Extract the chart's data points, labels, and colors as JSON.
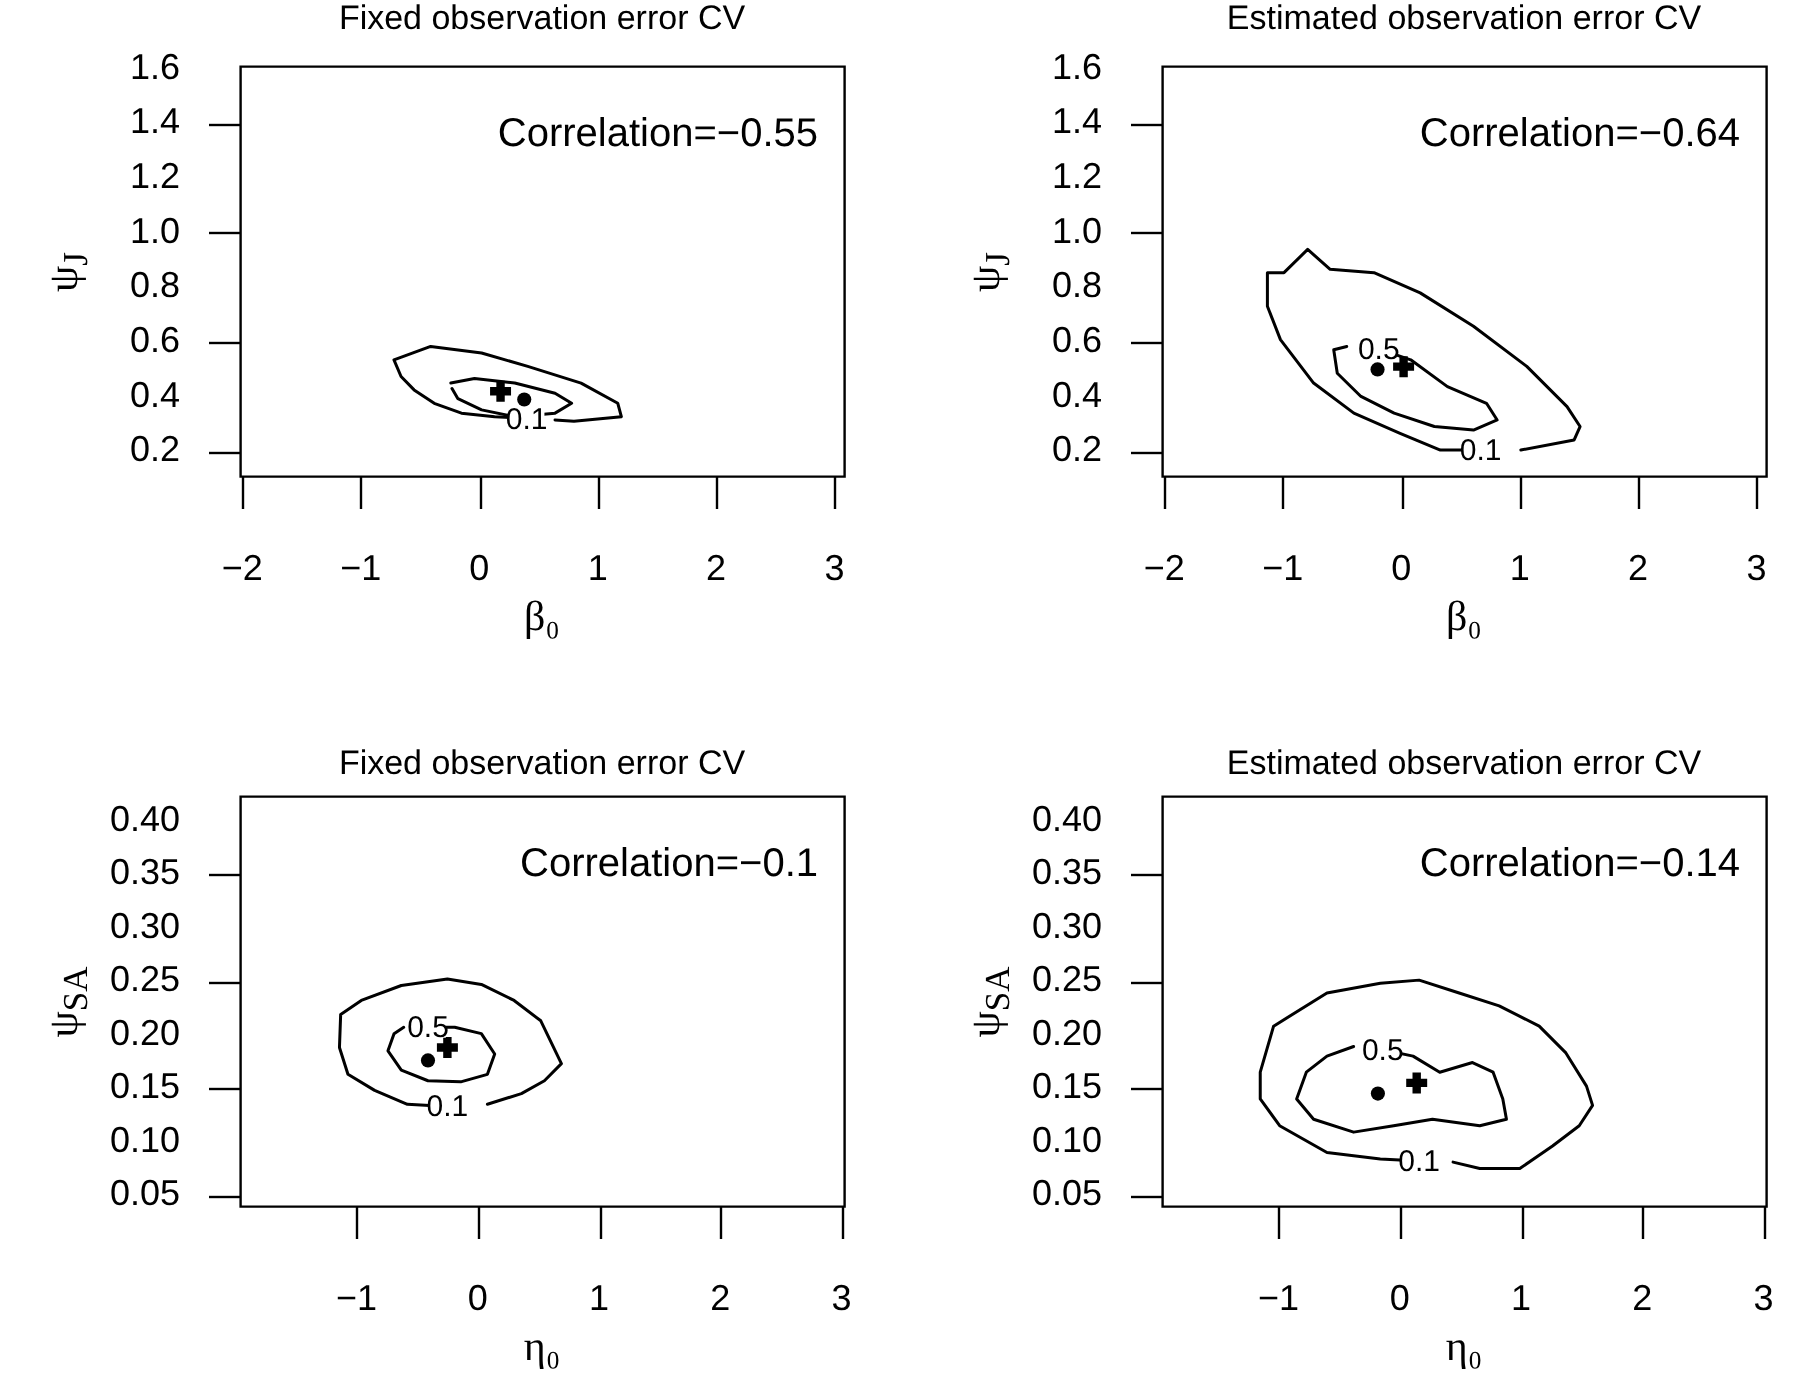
{
  "chart_data": [
    {
      "type": "line",
      "title": "Fixed observation error CV",
      "xlabel": "β₀",
      "ylabel": "ψ$_{J}$",
      "xlim": [
        -2.02,
        3.08
      ],
      "ylim": [
        0.11,
        1.61
      ],
      "xticks": [
        -2,
        -1,
        0,
        1,
        2,
        3
      ],
      "yticks": [
        0.2,
        0.4,
        0.6,
        0.8,
        {
          "value": 1,
          "label": "1.0"
        },
        1.2,
        1.4,
        1.6
      ],
      "series": [
        {
          "type": "line",
          "color": "#000000",
          "x": [
            0.4,
            0.13,
            -0.15,
            -0.38,
            -0.55,
            -0.66,
            -0.72,
            -0.41,
            0.02,
            0.41,
            0.86,
            1.17,
            1.2,
            0.8,
            0.64
          ],
          "values": [
            0.32,
            0.327,
            0.34,
            0.376,
            0.425,
            0.474,
            0.535,
            0.584,
            0.56,
            0.511,
            0.45,
            0.376,
            0.327,
            0.31,
            0.315
          ]
        },
        {
          "type": "line",
          "color": "#000000",
          "x": [
            -0.24,
            -0.04,
            0.3,
            0.64,
            0.78,
            0.64,
            0.3,
            0.02,
            -0.18,
            -0.23
          ],
          "values": [
            0.45,
            0.467,
            0.45,
            0.413,
            0.376,
            0.34,
            0.327,
            0.352,
            0.393,
            0.43
          ]
        },
        {
          "type": "scatter",
          "marker": "circle",
          "color": "#000000",
          "x": [
            0.38
          ],
          "values": [
            0.39
          ]
        },
        {
          "type": "scatter",
          "marker": "cross",
          "color": "#000000",
          "x": [
            0.18
          ],
          "values": [
            0.42
          ]
        }
      ],
      "annotations": [
        "Correlation=−0.55",
        {
          "text": "0.1",
          "x": 0.4,
          "y": 0.32
        }
      ]
    },
    {
      "type": "line",
      "title": "Estimated observation error CV",
      "xlabel": "β₀",
      "ylabel": "ψ$_{J}$",
      "xlim": [
        -2.02,
        3.08
      ],
      "ylim": [
        0.11,
        1.61
      ],
      "xticks": [
        -2,
        -1,
        0,
        1,
        2,
        3
      ],
      "yticks": [
        0.2,
        0.4,
        0.6,
        0.8,
        {
          "value": 1,
          "label": "1.0"
        },
        1.2,
        1.4,
        1.6
      ],
      "series": [
        {
          "type": "line",
          "color": "#000000",
          "x": [
            0.67,
            0.33,
            -0.01,
            -0.4,
            -0.74,
            -1.02,
            -1.13,
            -1.13,
            -0.99,
            -0.79,
            -0.6,
            -0.23,
            0.16,
            0.61,
            1.06,
            1.4,
            1.51,
            1.46,
            1.01
          ],
          "values": [
            0.205,
            0.205,
            0.266,
            0.34,
            0.45,
            0.609,
            0.731,
            0.854,
            0.854,
            0.939,
            0.866,
            0.854,
            0.78,
            0.658,
            0.511,
            0.364,
            0.291,
            0.242,
            0.205
          ]
        },
        {
          "type": "line",
          "color": "#000000",
          "x": [
            -0.19,
            0.08,
            0.39,
            0.72,
            0.81,
            0.61,
            0.28,
            -0.06,
            -0.34,
            -0.54,
            -0.57,
            -0.46
          ],
          "values": [
            0.575,
            0.535,
            0.437,
            0.376,
            0.315,
            0.278,
            0.291,
            0.34,
            0.401,
            0.486,
            0.572,
            0.584
          ]
        },
        {
          "type": "scatter",
          "marker": "circle",
          "color": "#000000",
          "x": [
            -0.2
          ],
          "values": [
            0.5
          ]
        },
        {
          "type": "scatter",
          "marker": "cross",
          "color": "#000000",
          "x": [
            0.02
          ],
          "values": [
            0.51
          ]
        }
      ],
      "annotations": [
        "Correlation=−0.64",
        {
          "text": "0.1",
          "x": 0.67,
          "y": 0.205
        },
        {
          "text": "0.5",
          "x": -0.19,
          "y": 0.575
        }
      ]
    },
    {
      "type": "line",
      "title": "Fixed observation error CV",
      "xlabel": "η₀",
      "ylabel": "ψ$_{SA}$",
      "xlim": [
        -1.96,
        3.02
      ],
      "ylim": [
        0.04,
        0.423
      ],
      "xticks": [
        -1,
        0,
        1,
        2,
        3
      ],
      "yticks": [
        0.05,
        {
          "value": 0.1,
          "label": "0.10"
        },
        0.15,
        {
          "value": 0.2,
          "label": "0.20"
        },
        0.25,
        {
          "value": 0.3,
          "label": "0.30"
        },
        0.35,
        {
          "value": 0.4,
          "label": "0.40"
        }
      ],
      "series": [
        {
          "type": "line",
          "color": "#000000",
          "x": [
            -0.25,
            -0.58,
            -0.85,
            -1.07,
            -1.14,
            -1.13,
            -0.96,
            -0.63,
            -0.25,
            0.03,
            0.3,
            0.52,
            0.69,
            0.55,
            0.36,
            0.08
          ],
          "values": [
            0.133,
            0.135,
            0.148,
            0.163,
            0.188,
            0.219,
            0.232,
            0.246,
            0.252,
            0.247,
            0.232,
            0.213,
            0.173,
            0.157,
            0.145,
            0.135
          ]
        },
        {
          "type": "line",
          "color": "#000000",
          "x": [
            -0.41,
            -0.19,
            0.03,
            0.14,
            0.08,
            -0.14,
            -0.41,
            -0.63,
            -0.74,
            -0.69,
            -0.61
          ],
          "values": [
            0.207,
            0.207,
            0.201,
            0.182,
            0.163,
            0.156,
            0.157,
            0.167,
            0.185,
            0.201,
            0.207
          ]
        },
        {
          "type": "scatter",
          "marker": "circle",
          "color": "#000000",
          "x": [
            -0.41
          ],
          "values": [
            0.176
          ]
        },
        {
          "type": "scatter",
          "marker": "cross",
          "color": "#000000",
          "x": [
            -0.25
          ],
          "values": [
            0.188
          ]
        }
      ],
      "annotations": [
        "Correlation=−0.1",
        {
          "text": "0.1",
          "x": -0.25,
          "y": 0.133
        },
        {
          "text": "0.5",
          "x": -0.41,
          "y": 0.207
        }
      ]
    },
    {
      "type": "line",
      "title": "Estimated observation error CV",
      "xlabel": "η₀",
      "ylabel": "ψ$_{SA}$",
      "xlim": [
        -1.96,
        3.02
      ],
      "ylim": [
        0.04,
        0.423
      ],
      "xticks": [
        -1,
        0,
        1,
        2,
        3
      ],
      "yticks": [
        0.05,
        {
          "value": 0.1,
          "label": "0.10"
        },
        0.15,
        {
          "value": 0.2,
          "label": "0.20"
        },
        0.25,
        {
          "value": 0.3,
          "label": "0.30"
        },
        0.35,
        {
          "value": 0.4,
          "label": "0.40"
        }
      ],
      "series": [
        {
          "type": "line",
          "color": "#000000",
          "x": [
            0.16,
            -0.16,
            -0.6,
            -0.99,
            -1.15,
            -1.15,
            -1.04,
            -0.6,
            -0.16,
            0.16,
            0.49,
            0.82,
            1.15,
            1.37,
            1.54,
            1.59,
            1.48,
            1.26,
            0.99,
            0.66,
            0.44
          ],
          "values": [
            0.082,
            0.084,
            0.09,
            0.115,
            0.14,
            0.165,
            0.208,
            0.239,
            0.248,
            0.251,
            0.239,
            0.227,
            0.208,
            0.183,
            0.152,
            0.134,
            0.115,
            0.096,
            0.075,
            0.075,
            0.081
          ]
        },
        {
          "type": "line",
          "color": "#000000",
          "x": [
            -0.14,
            0.11,
            0.33,
            0.6,
            0.77,
            0.85,
            0.88,
            0.66,
            0.27,
            -0.05,
            -0.38,
            -0.71,
            -0.85,
            -0.77,
            -0.6,
            -0.38
          ],
          "values": [
            0.186,
            0.18,
            0.165,
            0.174,
            0.165,
            0.14,
            0.121,
            0.115,
            0.121,
            0.115,
            0.109,
            0.121,
            0.14,
            0.165,
            0.18,
            0.189
          ]
        },
        {
          "type": "scatter",
          "marker": "circle",
          "color": "#000000",
          "x": [
            -0.18
          ],
          "values": [
            0.145
          ]
        },
        {
          "type": "scatter",
          "marker": "cross",
          "color": "#000000",
          "x": [
            0.14
          ],
          "values": [
            0.155
          ]
        }
      ],
      "annotations": [
        "Correlation=−0.14",
        {
          "text": "0.1",
          "x": 0.16,
          "y": 0.082
        },
        {
          "text": "0.5",
          "x": -0.14,
          "y": 0.186
        }
      ]
    }
  ]
}
